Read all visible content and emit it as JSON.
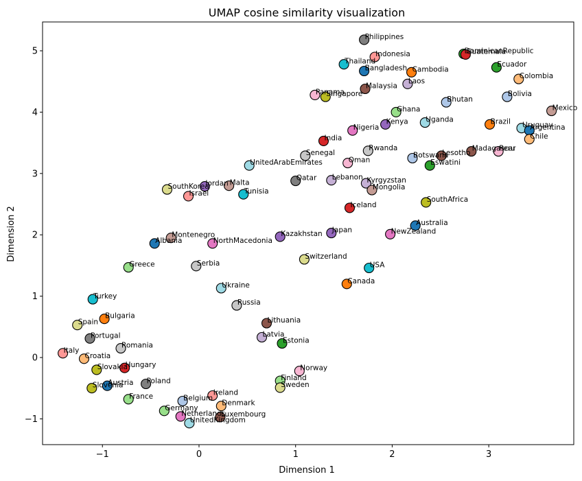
{
  "chart_data": {
    "type": "scatter",
    "title": "UMAP cosine similarity visualization",
    "xlabel": "Dimension 1",
    "ylabel": "Dimension 2",
    "xlim": [
      -1.62,
      3.88
    ],
    "ylim": [
      -1.42,
      5.47
    ],
    "xticks": [
      -1,
      0,
      1,
      2,
      3
    ],
    "yticks": [
      -1,
      0,
      1,
      2,
      3,
      4,
      5
    ],
    "grid": false,
    "legend": "none",
    "points": [
      {
        "label": "Philippines",
        "x": 1.71,
        "y": 5.18,
        "color": "#7f7f7f"
      },
      {
        "label": "Indonesia",
        "x": 1.82,
        "y": 4.9,
        "color": "#ff9896"
      },
      {
        "label": "DominicanRepublic",
        "x": 2.74,
        "y": 4.95,
        "color": "#2ca02c"
      },
      {
        "label": "Guatemala",
        "x": 2.76,
        "y": 4.94,
        "color": "#d62728"
      },
      {
        "label": "Thailand",
        "x": 1.5,
        "y": 4.78,
        "color": "#17becf"
      },
      {
        "label": "Ecuador",
        "x": 3.08,
        "y": 4.73,
        "color": "#2ca02c"
      },
      {
        "label": "Bangladesh",
        "x": 1.71,
        "y": 4.67,
        "color": "#1f77b4"
      },
      {
        "label": "Cambodia",
        "x": 2.2,
        "y": 4.65,
        "color": "#ff7f0e"
      },
      {
        "label": "Colombia",
        "x": 3.31,
        "y": 4.54,
        "color": "#ffbb78"
      },
      {
        "label": "Laos",
        "x": 2.16,
        "y": 4.46,
        "color": "#c5b0d5"
      },
      {
        "label": "Malaysia",
        "x": 1.72,
        "y": 4.38,
        "color": "#8c564b"
      },
      {
        "label": "Panama",
        "x": 1.2,
        "y": 4.28,
        "color": "#f7b6d2"
      },
      {
        "label": "Singapore",
        "x": 1.31,
        "y": 4.25,
        "color": "#bcbd22"
      },
      {
        "label": "Bolivia",
        "x": 3.19,
        "y": 4.25,
        "color": "#aec7e8"
      },
      {
        "label": "Bhutan",
        "x": 2.56,
        "y": 4.16,
        "color": "#aec7e8"
      },
      {
        "label": "Mexico",
        "x": 3.65,
        "y": 4.02,
        "color": "#c49c94"
      },
      {
        "label": "Ghana",
        "x": 2.04,
        "y": 4.0,
        "color": "#98df8a"
      },
      {
        "label": "Uganda",
        "x": 2.34,
        "y": 3.83,
        "color": "#9edae5"
      },
      {
        "label": "Kenya",
        "x": 1.93,
        "y": 3.8,
        "color": "#9467bd"
      },
      {
        "label": "Brazil",
        "x": 3.01,
        "y": 3.8,
        "color": "#ff7f0e"
      },
      {
        "label": "Uruguay",
        "x": 3.34,
        "y": 3.74,
        "color": "#9edae5"
      },
      {
        "label": "Argentina",
        "x": 3.42,
        "y": 3.7,
        "color": "#1f77b4"
      },
      {
        "label": "Nigeria",
        "x": 1.59,
        "y": 3.7,
        "color": "#e377c2"
      },
      {
        "label": "Chile",
        "x": 3.42,
        "y": 3.56,
        "color": "#ffbb78"
      },
      {
        "label": "India",
        "x": 1.29,
        "y": 3.53,
        "color": "#d62728"
      },
      {
        "label": "Rwanda",
        "x": 1.75,
        "y": 3.37,
        "color": "#c7c7c7"
      },
      {
        "label": "Madagascar",
        "x": 2.82,
        "y": 3.36,
        "color": "#8c564b"
      },
      {
        "label": "Peru",
        "x": 3.1,
        "y": 3.36,
        "color": "#f7b6d2"
      },
      {
        "label": "Lesotho",
        "x": 2.51,
        "y": 3.29,
        "color": "#8c564b"
      },
      {
        "label": "Senegal",
        "x": 1.1,
        "y": 3.29,
        "color": "#c7c7c7"
      },
      {
        "label": "Botswana",
        "x": 2.21,
        "y": 3.25,
        "color": "#aec7e8"
      },
      {
        "label": "Oman",
        "x": 1.54,
        "y": 3.17,
        "color": "#f7b6d2"
      },
      {
        "label": "UnitedArabEmirates",
        "x": 0.52,
        "y": 3.13,
        "color": "#9edae5"
      },
      {
        "label": "Eswatini",
        "x": 2.39,
        "y": 3.13,
        "color": "#2ca02c"
      },
      {
        "label": "Lebanon",
        "x": 1.37,
        "y": 2.89,
        "color": "#c5b0d5"
      },
      {
        "label": "Qatar",
        "x": 1.0,
        "y": 2.88,
        "color": "#7f7f7f"
      },
      {
        "label": "Kyrgyzstan",
        "x": 1.73,
        "y": 2.84,
        "color": "#c5b0d5"
      },
      {
        "label": "SouthKorea",
        "x": -0.33,
        "y": 2.74,
        "color": "#dbdb8d"
      },
      {
        "label": "Jordan",
        "x": 0.06,
        "y": 2.79,
        "color": "#9467bd"
      },
      {
        "label": "Malta",
        "x": 0.31,
        "y": 2.8,
        "color": "#c49c94"
      },
      {
        "label": "Mongolia",
        "x": 1.79,
        "y": 2.73,
        "color": "#c49c94"
      },
      {
        "label": "Tunisia",
        "x": 0.46,
        "y": 2.66,
        "color": "#17becf"
      },
      {
        "label": "Israel",
        "x": -0.11,
        "y": 2.63,
        "color": "#ff9896"
      },
      {
        "label": "SouthAfrica",
        "x": 2.35,
        "y": 2.53,
        "color": "#bcbd22"
      },
      {
        "label": "Iceland",
        "x": 1.56,
        "y": 2.44,
        "color": "#d62728"
      },
      {
        "label": "Australia",
        "x": 2.24,
        "y": 2.15,
        "color": "#1f77b4"
      },
      {
        "label": "Japan",
        "x": 1.37,
        "y": 2.03,
        "color": "#9467bd"
      },
      {
        "label": "NewZealand",
        "x": 1.98,
        "y": 2.01,
        "color": "#e377c2"
      },
      {
        "label": "Kazakhstan",
        "x": 0.84,
        "y": 1.97,
        "color": "#9467bd"
      },
      {
        "label": "Montenegro",
        "x": -0.29,
        "y": 1.95,
        "color": "#c49c94"
      },
      {
        "label": "Albania",
        "x": -0.46,
        "y": 1.86,
        "color": "#1f77b4"
      },
      {
        "label": "NorthMacedonia",
        "x": 0.14,
        "y": 1.86,
        "color": "#e377c2"
      },
      {
        "label": "Switzerland",
        "x": 1.09,
        "y": 1.6,
        "color": "#dbdb8d"
      },
      {
        "label": "Greece",
        "x": -0.73,
        "y": 1.47,
        "color": "#98df8a"
      },
      {
        "label": "Serbia",
        "x": -0.03,
        "y": 1.49,
        "color": "#c7c7c7"
      },
      {
        "label": "USA",
        "x": 1.76,
        "y": 1.46,
        "color": "#17becf"
      },
      {
        "label": "Canada",
        "x": 1.53,
        "y": 1.2,
        "color": "#ff7f0e"
      },
      {
        "label": "Ukraine",
        "x": 0.23,
        "y": 1.13,
        "color": "#9edae5"
      },
      {
        "label": "Turkey",
        "x": -1.1,
        "y": 0.95,
        "color": "#17becf"
      },
      {
        "label": "Russia",
        "x": 0.39,
        "y": 0.85,
        "color": "#c7c7c7"
      },
      {
        "label": "Bulgaria",
        "x": -0.98,
        "y": 0.63,
        "color": "#ff7f0e"
      },
      {
        "label": "Lithuania",
        "x": 0.7,
        "y": 0.56,
        "color": "#8c564b"
      },
      {
        "label": "Spain",
        "x": -1.26,
        "y": 0.53,
        "color": "#dbdb8d"
      },
      {
        "label": "Latvia",
        "x": 0.65,
        "y": 0.33,
        "color": "#c5b0d5"
      },
      {
        "label": "Portugal",
        "x": -1.13,
        "y": 0.31,
        "color": "#7f7f7f"
      },
      {
        "label": "Estonia",
        "x": 0.86,
        "y": 0.23,
        "color": "#2ca02c"
      },
      {
        "label": "Romania",
        "x": -0.81,
        "y": 0.15,
        "color": "#c7c7c7"
      },
      {
        "label": "Italy",
        "x": -1.41,
        "y": 0.07,
        "color": "#ff9896"
      },
      {
        "label": "Croatia",
        "x": -1.19,
        "y": -0.02,
        "color": "#ffbb78"
      },
      {
        "label": "Hungary",
        "x": -0.77,
        "y": -0.17,
        "color": "#d62728"
      },
      {
        "label": "Slovakia",
        "x": -1.06,
        "y": -0.2,
        "color": "#bcbd22"
      },
      {
        "label": "Norway",
        "x": 1.04,
        "y": -0.22,
        "color": "#f7b6d2"
      },
      {
        "label": "Finland",
        "x": 0.84,
        "y": -0.38,
        "color": "#98df8a"
      },
      {
        "label": "Poland",
        "x": -0.55,
        "y": -0.43,
        "color": "#7f7f7f"
      },
      {
        "label": "Austria",
        "x": -0.95,
        "y": -0.46,
        "color": "#1f77b4"
      },
      {
        "label": "Sweden",
        "x": 0.84,
        "y": -0.49,
        "color": "#dbdb8d"
      },
      {
        "label": "Slovenia",
        "x": -1.11,
        "y": -0.5,
        "color": "#bcbd22"
      },
      {
        "label": "Ireland",
        "x": 0.14,
        "y": -0.62,
        "color": "#ff9896"
      },
      {
        "label": "France",
        "x": -0.73,
        "y": -0.68,
        "color": "#98df8a"
      },
      {
        "label": "Belgium",
        "x": -0.17,
        "y": -0.71,
        "color": "#aec7e8"
      },
      {
        "label": "Denmark",
        "x": 0.23,
        "y": -0.79,
        "color": "#ffbb78"
      },
      {
        "label": "Germany",
        "x": -0.36,
        "y": -0.87,
        "color": "#98df8a"
      },
      {
        "label": "Netherlands",
        "x": -0.19,
        "y": -0.96,
        "color": "#e377c2"
      },
      {
        "label": "Luxembourg",
        "x": 0.22,
        "y": -0.97,
        "color": "#8c564b"
      },
      {
        "label": "UnitedKingdom",
        "x": -0.1,
        "y": -1.07,
        "color": "#9edae5"
      }
    ]
  }
}
